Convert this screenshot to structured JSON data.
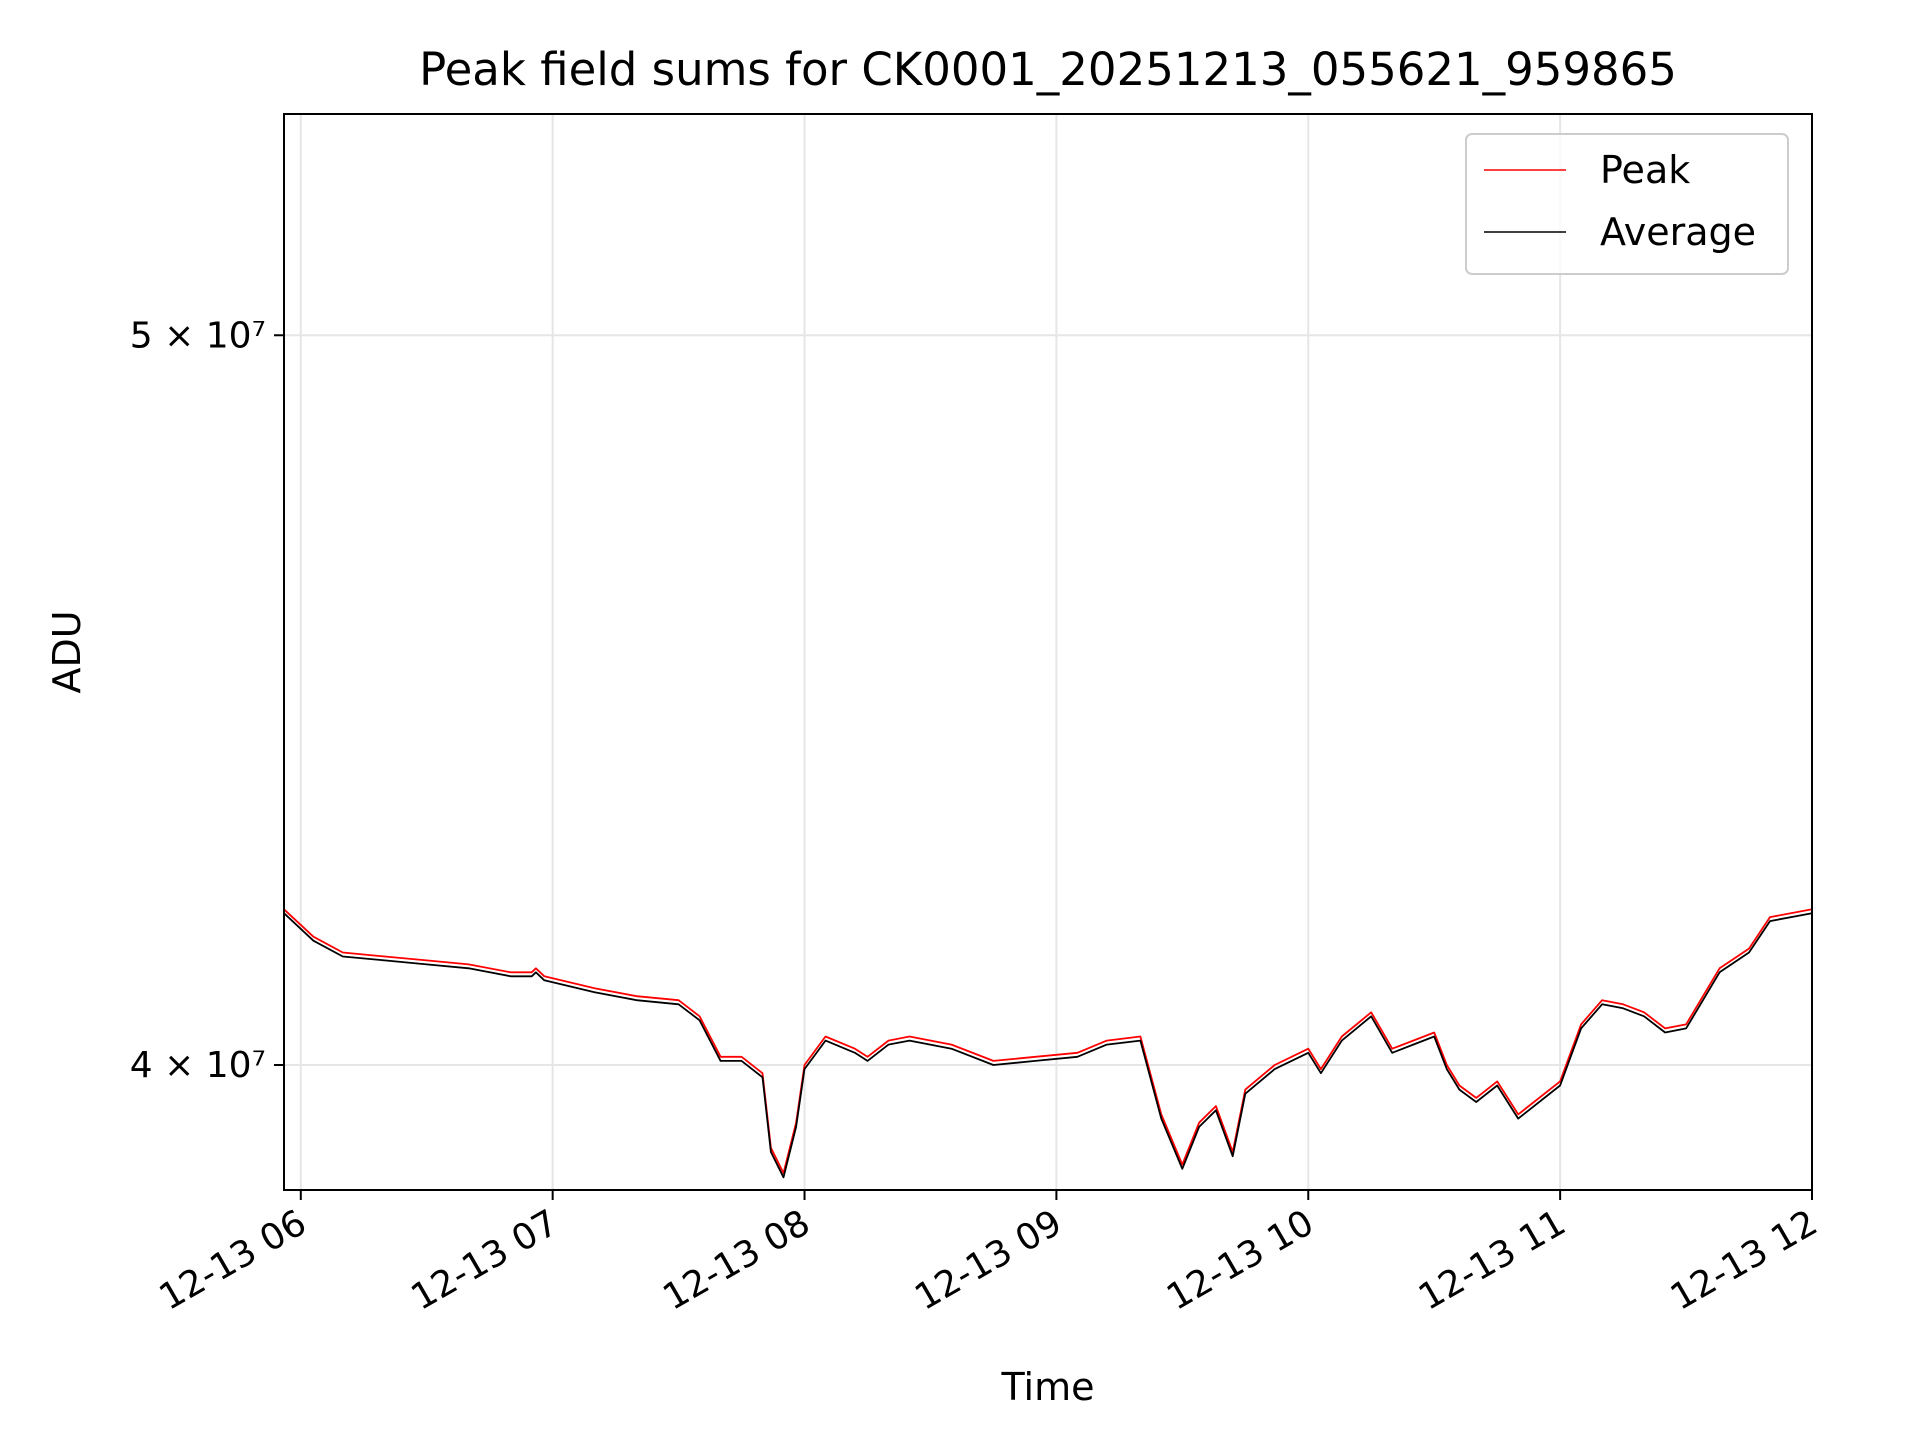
{
  "chart_data": {
    "type": "line",
    "title": "Peak field sums for CK0001_20251213_055621_959865",
    "xlabel": "Time",
    "ylabel": "ADU",
    "x_range": [
      "2025-12-13 05:56",
      "2025-12-13 12:00"
    ],
    "y_scale": "log",
    "ylim": [
      38500000,
      53500000
    ],
    "grid": true,
    "legend_position": "top-right",
    "x_ticks": [
      {
        "value": "2025-12-13 06:00",
        "label": "12-13 06"
      },
      {
        "value": "2025-12-13 07:00",
        "label": "12-13 07"
      },
      {
        "value": "2025-12-13 08:00",
        "label": "12-13 08"
      },
      {
        "value": "2025-12-13 09:00",
        "label": "12-13 09"
      },
      {
        "value": "2025-12-13 10:00",
        "label": "12-13 10"
      },
      {
        "value": "2025-12-13 11:00",
        "label": "12-13 11"
      },
      {
        "value": "2025-12-13 12:00",
        "label": "12-13 12"
      }
    ],
    "y_ticks": [
      {
        "value": 40000000,
        "label": "4 × 10⁷"
      },
      {
        "value": 50000000,
        "label": "5 × 10⁷"
      }
    ],
    "series": [
      {
        "name": "Peak",
        "color": "#ff0000",
        "x": [
          "2025-12-13 05:56",
          "2025-12-13 06:03",
          "2025-12-13 06:10",
          "2025-12-13 06:20",
          "2025-12-13 06:30",
          "2025-12-13 06:40",
          "2025-12-13 06:50",
          "2025-12-13 06:55",
          "2025-12-13 06:56",
          "2025-12-13 06:58",
          "2025-12-13 07:10",
          "2025-12-13 07:20",
          "2025-12-13 07:30",
          "2025-12-13 07:35",
          "2025-12-13 07:40",
          "2025-12-13 07:45",
          "2025-12-13 07:50",
          "2025-12-13 07:52",
          "2025-12-13 07:55",
          "2025-12-13 07:58",
          "2025-12-13 08:00",
          "2025-12-13 08:05",
          "2025-12-13 08:12",
          "2025-12-13 08:15",
          "2025-12-13 08:20",
          "2025-12-13 08:25",
          "2025-12-13 08:35",
          "2025-12-13 08:45",
          "2025-12-13 08:55",
          "2025-12-13 09:05",
          "2025-12-13 09:12",
          "2025-12-13 09:20",
          "2025-12-13 09:25",
          "2025-12-13 09:30",
          "2025-12-13 09:34",
          "2025-12-13 09:38",
          "2025-12-13 09:42",
          "2025-12-13 09:45",
          "2025-12-13 09:52",
          "2025-12-13 10:00",
          "2025-12-13 10:03",
          "2025-12-13 10:08",
          "2025-12-13 10:15",
          "2025-12-13 10:20",
          "2025-12-13 10:25",
          "2025-12-13 10:30",
          "2025-12-13 10:33",
          "2025-12-13 10:36",
          "2025-12-13 10:40",
          "2025-12-13 10:45",
          "2025-12-13 10:50",
          "2025-12-13 11:00",
          "2025-12-13 11:05",
          "2025-12-13 11:10",
          "2025-12-13 11:15",
          "2025-12-13 11:20",
          "2025-12-13 11:25",
          "2025-12-13 11:30",
          "2025-12-13 11:38",
          "2025-12-13 11:45",
          "2025-12-13 11:50",
          "2025-12-13 12:00"
        ],
        "y": [
          41950000,
          41600000,
          41400000,
          41350000,
          41300000,
          41250000,
          41150000,
          41150000,
          41200000,
          41100000,
          40950000,
          40850000,
          40800000,
          40600000,
          40100000,
          40100000,
          39900000,
          39000000,
          38700000,
          39300000,
          40000000,
          40350000,
          40200000,
          40100000,
          40300000,
          40350000,
          40250000,
          40050000,
          40100000,
          40150000,
          40300000,
          40350000,
          39400000,
          38800000,
          39300000,
          39500000,
          38950000,
          39700000,
          40000000,
          40200000,
          39950000,
          40350000,
          40650000,
          40200000,
          40300000,
          40400000,
          40000000,
          39750000,
          39600000,
          39800000,
          39400000,
          39800000,
          40500000,
          40800000,
          40750000,
          40650000,
          40450000,
          40500000,
          41200000,
          41450000,
          41850000,
          41950000
        ]
      },
      {
        "name": "Average",
        "color": "#000000",
        "x": [
          "2025-12-13 05:56",
          "2025-12-13 06:03",
          "2025-12-13 06:10",
          "2025-12-13 06:20",
          "2025-12-13 06:30",
          "2025-12-13 06:40",
          "2025-12-13 06:50",
          "2025-12-13 06:55",
          "2025-12-13 06:56",
          "2025-12-13 06:58",
          "2025-12-13 07:10",
          "2025-12-13 07:20",
          "2025-12-13 07:30",
          "2025-12-13 07:35",
          "2025-12-13 07:40",
          "2025-12-13 07:45",
          "2025-12-13 07:50",
          "2025-12-13 07:52",
          "2025-12-13 07:55",
          "2025-12-13 07:58",
          "2025-12-13 08:00",
          "2025-12-13 08:05",
          "2025-12-13 08:12",
          "2025-12-13 08:15",
          "2025-12-13 08:20",
          "2025-12-13 08:25",
          "2025-12-13 08:35",
          "2025-12-13 08:45",
          "2025-12-13 08:55",
          "2025-12-13 09:05",
          "2025-12-13 09:12",
          "2025-12-13 09:20",
          "2025-12-13 09:25",
          "2025-12-13 09:30",
          "2025-12-13 09:34",
          "2025-12-13 09:38",
          "2025-12-13 09:42",
          "2025-12-13 09:45",
          "2025-12-13 09:52",
          "2025-12-13 10:00",
          "2025-12-13 10:03",
          "2025-12-13 10:08",
          "2025-12-13 10:15",
          "2025-12-13 10:20",
          "2025-12-13 10:25",
          "2025-12-13 10:30",
          "2025-12-13 10:33",
          "2025-12-13 10:36",
          "2025-12-13 10:40",
          "2025-12-13 10:45",
          "2025-12-13 10:50",
          "2025-12-13 11:00",
          "2025-12-13 11:05",
          "2025-12-13 11:10",
          "2025-12-13 11:15",
          "2025-12-13 11:20",
          "2025-12-13 11:25",
          "2025-12-13 11:30",
          "2025-12-13 11:38",
          "2025-12-13 11:45",
          "2025-12-13 11:50",
          "2025-12-13 12:00"
        ],
        "y": [
          41900000,
          41550000,
          41350000,
          41300000,
          41250000,
          41200000,
          41100000,
          41100000,
          41150000,
          41050000,
          40900000,
          40800000,
          40750000,
          40550000,
          40050000,
          40050000,
          39850000,
          38950000,
          38650000,
          39250000,
          39950000,
          40300000,
          40150000,
          40050000,
          40250000,
          40300000,
          40200000,
          40000000,
          40050000,
          40100000,
          40250000,
          40300000,
          39350000,
          38750000,
          39250000,
          39450000,
          38900000,
          39650000,
          39950000,
          40150000,
          39900000,
          40300000,
          40600000,
          40150000,
          40250000,
          40350000,
          39950000,
          39700000,
          39550000,
          39750000,
          39350000,
          39750000,
          40450000,
          40750000,
          40700000,
          40600000,
          40400000,
          40450000,
          41150000,
          41400000,
          41800000,
          41900000
        ]
      }
    ]
  }
}
